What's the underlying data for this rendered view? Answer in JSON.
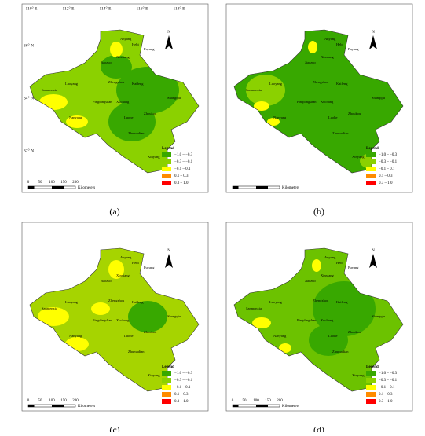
{
  "panels": [
    {
      "label": "(a)"
    },
    {
      "label": "(b)"
    },
    {
      "label": "(c)"
    },
    {
      "label": "(d)"
    }
  ],
  "longitude_labels": [
    "110° E",
    "112° E",
    "114° E",
    "116° E",
    "118° E"
  ],
  "latitude_labels": [
    "36° N",
    "34° N",
    "32° N"
  ],
  "north_arrow": "N",
  "legend": {
    "title": "Legend",
    "items": [
      {
        "label": "−1.0 – −0.3",
        "color": "#38a800"
      },
      {
        "label": "−0.3 – −0.1",
        "color": "#8bd100"
      },
      {
        "label": "−0.1 – 0.1",
        "color": "#ffff00"
      },
      {
        "label": "0.1 – 0.3",
        "color": "#ff8c00"
      },
      {
        "label": "0.3 – 1.0",
        "color": "#ff0000"
      }
    ]
  },
  "scale_bar": {
    "ticks": [
      "0",
      "50",
      "100",
      "150",
      "200"
    ],
    "unit": "Kilometers"
  },
  "cities": [
    "Anyang",
    "Hebi",
    "Puyang",
    "Xinxiang",
    "Jiaozuo",
    "Sanmenxia",
    "Luoyang",
    "Zhengzhou",
    "Kaifeng",
    "Shangqiu",
    "Pingdingshan",
    "Xuchang",
    "Zhoukou",
    "Luohe",
    "Nanyang",
    "Zhumadian",
    "Xinyang"
  ]
}
